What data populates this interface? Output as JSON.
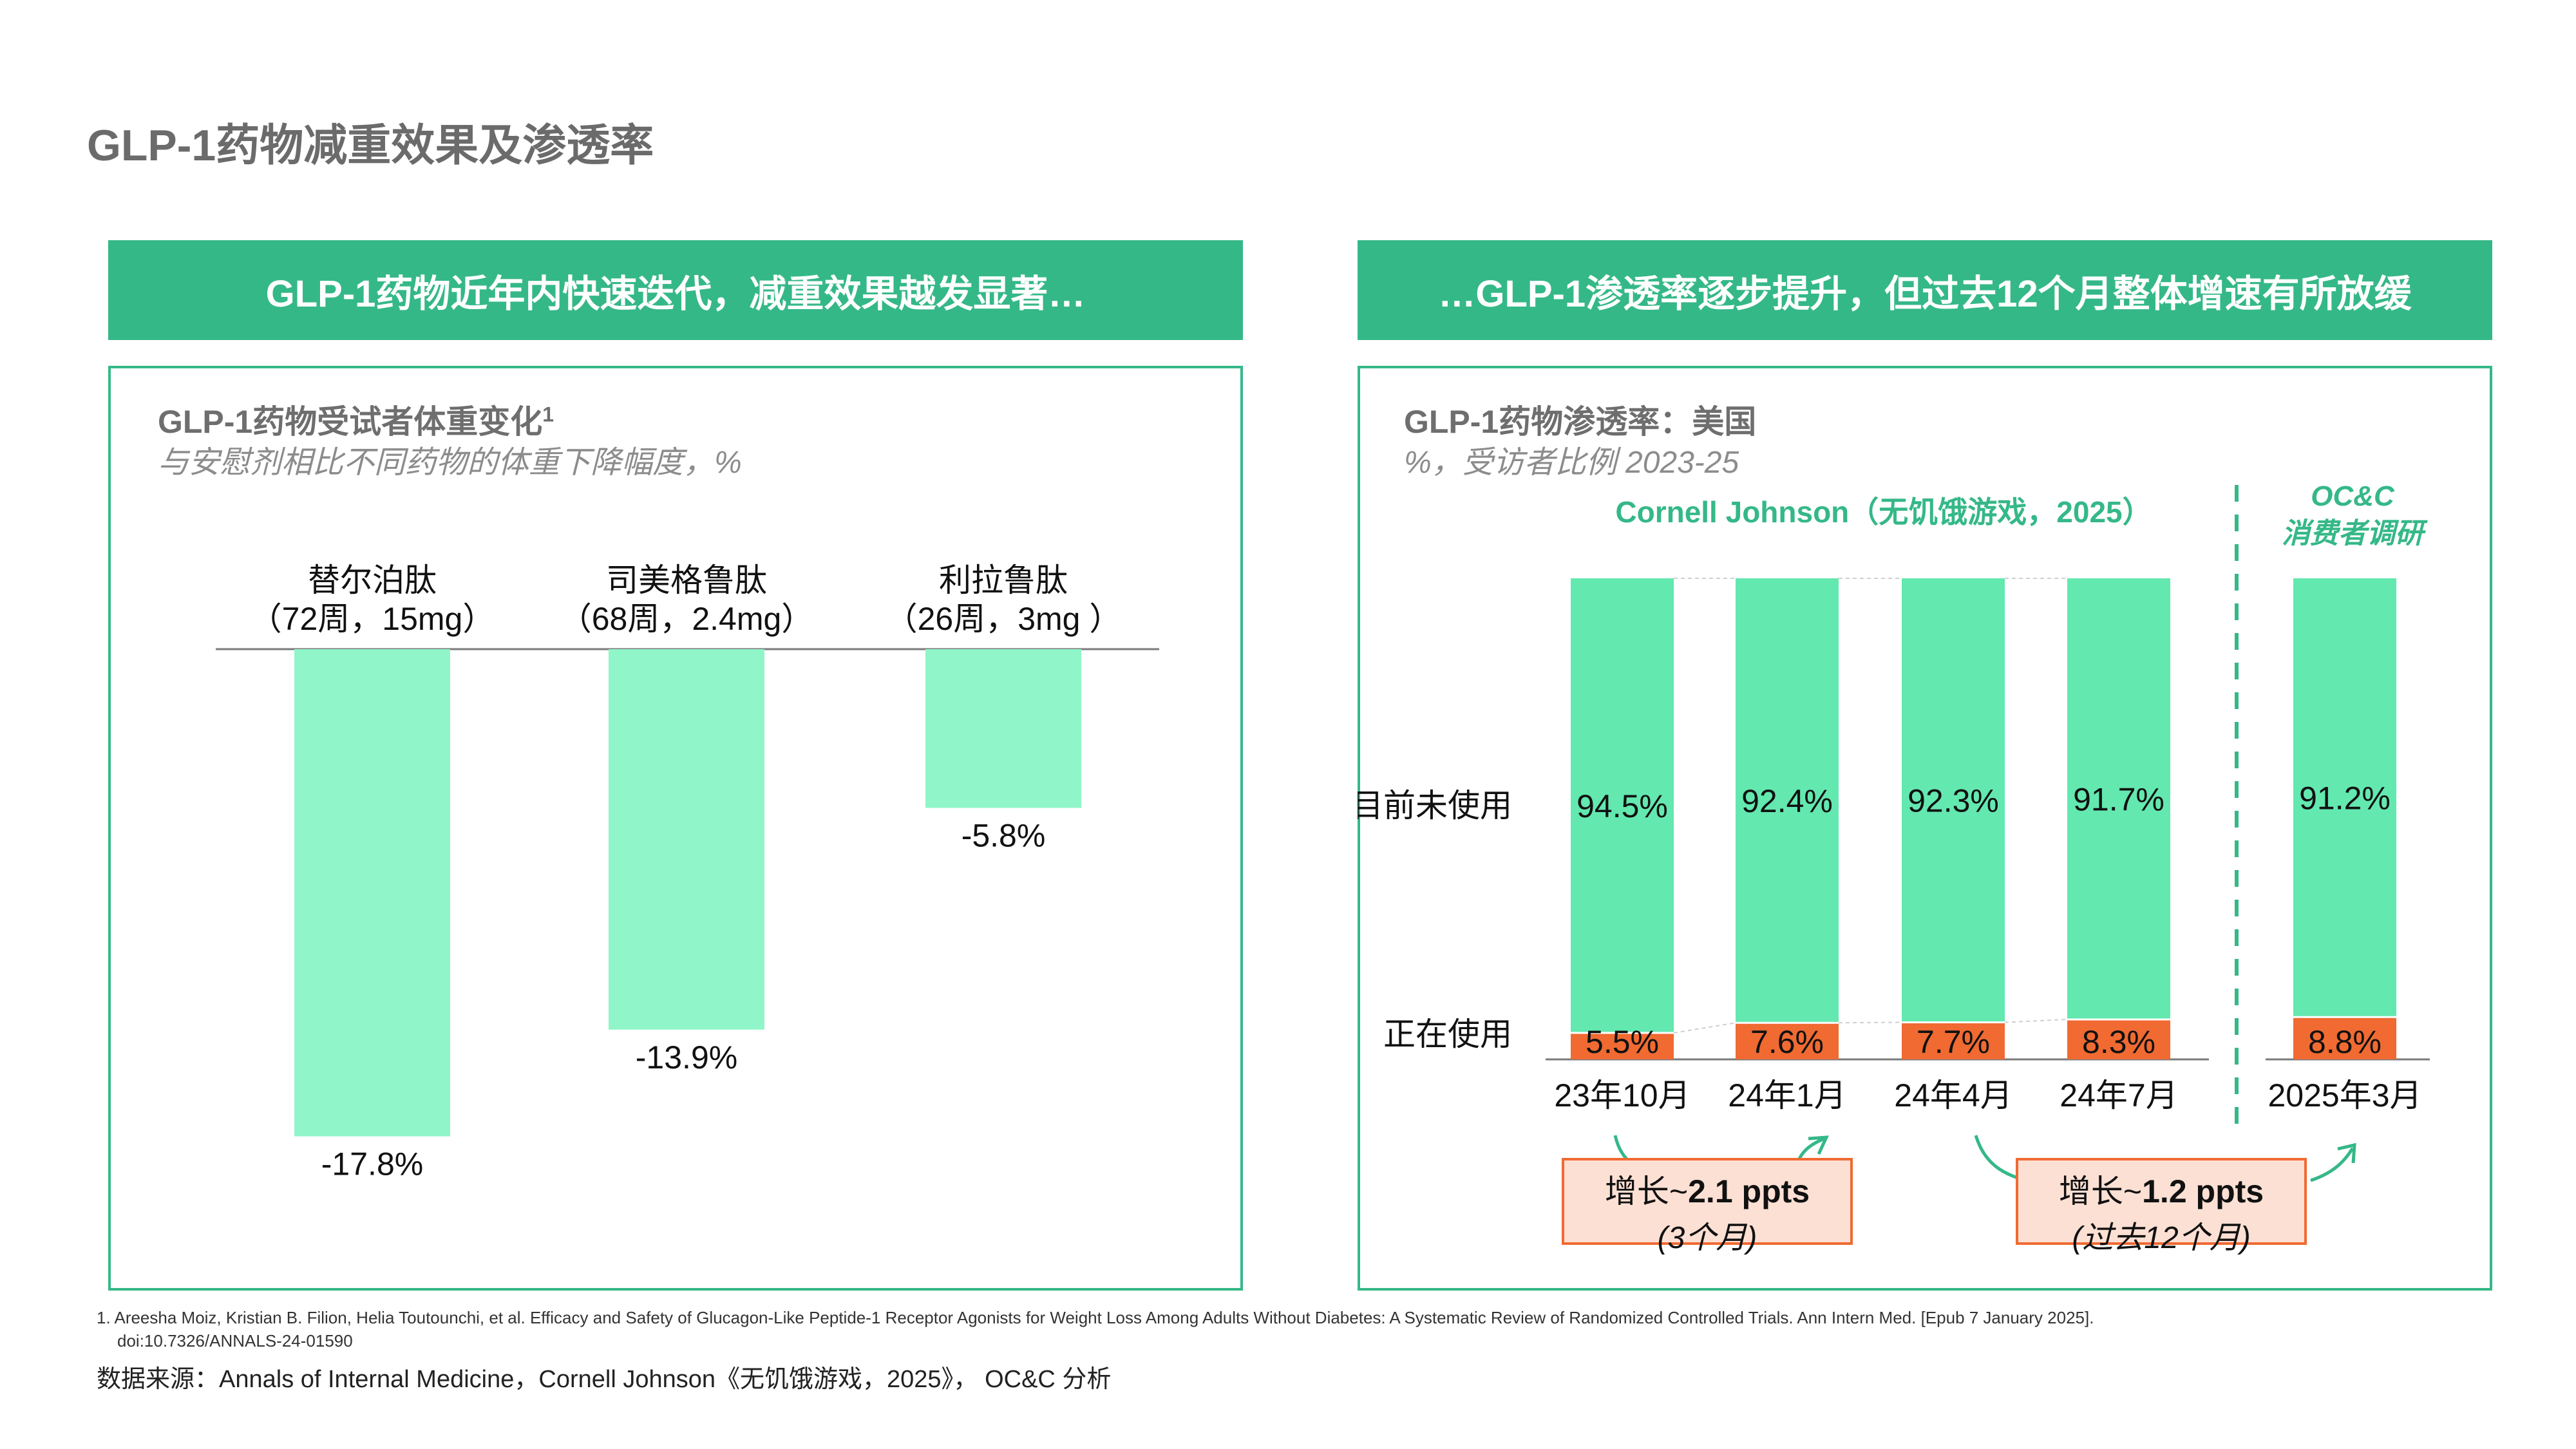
{
  "page_title": "GLP-1药物减重效果及渗透率",
  "left_banner": "GLP-1药物近年内快速迭代，减重效果越发显著…",
  "right_banner": "…GLP-1渗透率逐步提升，但过去12个月整体增速有所放缓",
  "left_panel": {
    "title": "GLP-1药物受试者体重变化",
    "title_sup": "1",
    "subtitle": "与安慰剂相比不同药物的体重下降幅度，%"
  },
  "right_panel": {
    "title": "GLP-1药物渗透率：美国",
    "subtitle": "%，受访者比例 2023-25",
    "group1_label": "Cornell Johnson（无饥饿游戏，2025）",
    "group2_label_line1": "OC&C",
    "group2_label_line2": "消费者调研",
    "row_label_not_using": "目前未使用",
    "row_label_using": "正在使用"
  },
  "deltas": [
    {
      "prefix": "增长~",
      "value": "2.1 ppts",
      "period": "(3个月)"
    },
    {
      "prefix": "增长~",
      "value": "1.2 ppts",
      "period": "(过去12个月)"
    }
  ],
  "footnote_line1": "1. Areesha Moiz, Kristian B. Filion, Helia Toutounchi, et al. Efficacy and Safety of Glucagon-Like Peptide-1 Receptor Agonists for Weight Loss Among Adults Without Diabetes: A Systematic Review of Randomized Controlled Trials. Ann Intern Med. [Epub 7 January 2025].",
  "footnote_line2": "doi:10.7326/ANNALS-24-01590",
  "source": "数据来源：Annals of Internal Medicine，Cornell Johnson《无饥饿游戏，2025》， OC&C 分析",
  "colors": {
    "banner_green": "#35b888",
    "bar_light_green": "#90f5c9",
    "bar_green": "#63e8b0",
    "bar_orange": "#f06a32",
    "axis": "#7a7a7a"
  },
  "chart_data": [
    {
      "type": "bar",
      "categories": [
        [
          "替尔泊肽",
          "（72周，15mg）"
        ],
        [
          "司美格鲁肽",
          "（68周，2.4mg）"
        ],
        [
          "利拉鲁肽",
          "（26周，3mg ）"
        ]
      ],
      "values": [
        -17.8,
        -13.9,
        -5.8
      ],
      "value_labels": [
        "-17.8%",
        "-13.9%",
        "-5.8%"
      ],
      "ylim": [
        -20,
        0
      ]
    },
    {
      "type": "bar",
      "stacked": true,
      "categories": [
        "23年10月",
        "24年1月",
        "24年4月",
        "24年7月",
        "2025年3月"
      ],
      "series": [
        {
          "name": "正在使用",
          "values": [
            5.5,
            7.6,
            7.7,
            8.3,
            8.8
          ],
          "labels": [
            "5.5%",
            "7.6%",
            "7.7%",
            "8.3%",
            "8.8%"
          ]
        },
        {
          "name": "目前未使用",
          "values": [
            94.5,
            92.4,
            92.3,
            91.7,
            91.2
          ],
          "labels": [
            "94.5%",
            "92.4%",
            "92.3%",
            "91.7%",
            "91.2%"
          ]
        }
      ],
      "ylim": [
        0,
        100
      ]
    }
  ]
}
